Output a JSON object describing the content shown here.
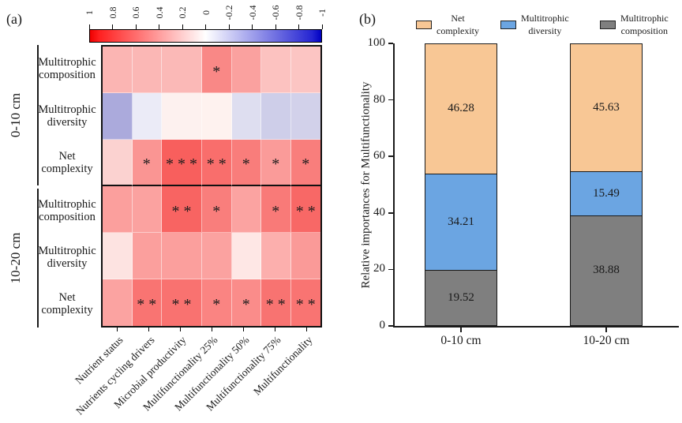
{
  "figure": {
    "panel_a": {
      "label": "(a)",
      "colorbar": {
        "tick_labels": [
          "1",
          "0.8",
          "0.6",
          "0.4",
          "0.2",
          "0",
          "-0.2",
          "-0.4",
          "-0.6",
          "-0.8",
          "-1"
        ],
        "color_positive": "#EE0000",
        "color_zero": "#FFFFFF",
        "color_negative": "#0000C2"
      },
      "row_groups": [
        {
          "label": "0-10 cm",
          "rows": [
            "Multitrophic composition",
            "Multitrophic diversity",
            "Net complexity"
          ]
        },
        {
          "label": "10-20 cm",
          "rows": [
            "Multitrophic composition",
            "Multitrophic diversity",
            "Net complexity"
          ]
        }
      ],
      "col_labels": [
        "Nutrient status",
        "Nutrients cycling drivers",
        "Microbial productivity",
        "Multifunctionality 25%",
        "Multifunctionality 50%",
        "Multifunctionality 75%",
        "Multifunctionality"
      ],
      "cell_colors": [
        [
          "#FBB5B3",
          "#FBB7B5",
          "#FBB9B7",
          "#F98886",
          "#FAA19F",
          "#FCC2C0",
          "#FCC5C3"
        ],
        [
          "#ABAADC",
          "#EBEBF7",
          "#FDF1EF",
          "#FEF2EF",
          "#DEDEF0",
          "#CECEE9",
          "#D2D1EA"
        ],
        [
          "#FBD2D0",
          "#FA9593",
          "#F85F5D",
          "#F96E6C",
          "#F97D7B",
          "#FA9B99",
          "#F97E7C"
        ],
        [
          "#FB9F9D",
          "#FBA2A0",
          "#F86462",
          "#F97E7C",
          "#FBA3A1",
          "#F97A78",
          "#F86866"
        ],
        [
          "#FDE3E1",
          "#FB9F9D",
          "#FB9F9D",
          "#FBA2A0",
          "#FEE7E5",
          "#FCAFAD",
          "#FA9A98"
        ],
        [
          "#FBA3A1",
          "#F97472",
          "#F97270",
          "#FA8482",
          "#FA8C8A",
          "#F87371",
          "#F97472"
        ]
      ],
      "cell_significance": [
        [
          "",
          "",
          "",
          "*",
          "",
          "",
          ""
        ],
        [
          "",
          "",
          "",
          "",
          "",
          "",
          ""
        ],
        [
          "",
          "*",
          "***",
          "**",
          "*",
          "*",
          "*"
        ],
        [
          "",
          "",
          "**",
          "*",
          "",
          "*",
          "**"
        ],
        [
          "",
          "",
          "",
          "",
          "",
          "",
          ""
        ],
        [
          "",
          "**",
          "**",
          "*",
          "*",
          "**",
          "**"
        ]
      ]
    },
    "panel_b": {
      "label": "(b)",
      "legend": [
        {
          "name": "Net complexity",
          "line1": "Net",
          "line2": "complexity",
          "color": "#F8C795"
        },
        {
          "name": "Multitrophic diversity",
          "line1": "Multitrophic",
          "line2": "diversity",
          "color": "#6BA5E2"
        },
        {
          "name": "Multitrophic composition",
          "line1": "Multitrophic",
          "line2": "composition",
          "color": "#7F7F7F"
        }
      ],
      "y_axis_title": "Relative importances for Multifunctionality",
      "y_ticks": [
        "0",
        "20",
        "40",
        "60",
        "80",
        "100"
      ],
      "x_categories": [
        "0-10 cm",
        "10-20 cm"
      ]
    }
  },
  "chart_data": [
    {
      "type": "heatmap",
      "title": "Correlations between multitrophic community metrics and soil functions",
      "row_groups": [
        "0-10 cm",
        "10-20 cm"
      ],
      "rows": [
        "0-10 cm Multitrophic composition",
        "0-10 cm Multitrophic diversity",
        "0-10 cm Net complexity",
        "10-20 cm Multitrophic composition",
        "10-20 cm Multitrophic diversity",
        "10-20 cm Net complexity"
      ],
      "columns": [
        "Nutrient status",
        "Nutrients cycling drivers",
        "Microbial productivity",
        "Multifunctionality 25%",
        "Multifunctionality 50%",
        "Multifunctionality 75%",
        "Multifunctionality"
      ],
      "values_estimated_r": [
        [
          0.29,
          0.28,
          0.27,
          0.47,
          0.37,
          0.24,
          0.23
        ],
        [
          -0.33,
          -0.08,
          0.05,
          0.05,
          -0.13,
          -0.19,
          -0.18
        ],
        [
          0.18,
          0.42,
          0.63,
          0.57,
          0.51,
          0.39,
          0.5
        ],
        [
          0.37,
          0.36,
          0.61,
          0.5,
          0.36,
          0.52,
          0.59
        ],
        [
          0.11,
          0.37,
          0.37,
          0.36,
          0.09,
          0.31,
          0.4
        ],
        [
          0.36,
          0.54,
          0.55,
          0.48,
          0.45,
          0.55,
          0.54
        ]
      ],
      "significance": [
        [
          "",
          "",
          "",
          "*",
          "",
          "",
          ""
        ],
        [
          "",
          "",
          "",
          "",
          "",
          "",
          ""
        ],
        [
          "",
          "*",
          "***",
          "**",
          "*",
          "*",
          "*"
        ],
        [
          "",
          "",
          "**",
          "*",
          "",
          "*",
          "**"
        ],
        [
          "",
          "",
          "",
          "",
          "",
          "",
          ""
        ],
        [
          "",
          "**",
          "**",
          "*",
          "*",
          "**",
          "**"
        ]
      ],
      "colorbar_range": [
        1,
        -1
      ],
      "colorbar_ticks": [
        1,
        0.8,
        0.6,
        0.4,
        0.2,
        0,
        -0.2,
        -0.4,
        -0.6,
        -0.8,
        -1
      ]
    },
    {
      "type": "bar",
      "subtype": "stacked",
      "categories": [
        "0-10 cm",
        "10-20 cm"
      ],
      "series": [
        {
          "name": "Multitrophic composition",
          "color": "#7F7F7F",
          "values": [
            19.52,
            38.88
          ]
        },
        {
          "name": "Multitrophic diversity",
          "color": "#6BA5E2",
          "values": [
            34.21,
            15.49
          ]
        },
        {
          "name": "Net complexity",
          "color": "#F8C795",
          "values": [
            46.28,
            45.63
          ]
        }
      ],
      "ylabel": "Relative importances for Multifunctionality",
      "ylim": [
        0,
        100
      ],
      "y_tick_step": 20,
      "legend_position": "top",
      "grid": false
    }
  ]
}
